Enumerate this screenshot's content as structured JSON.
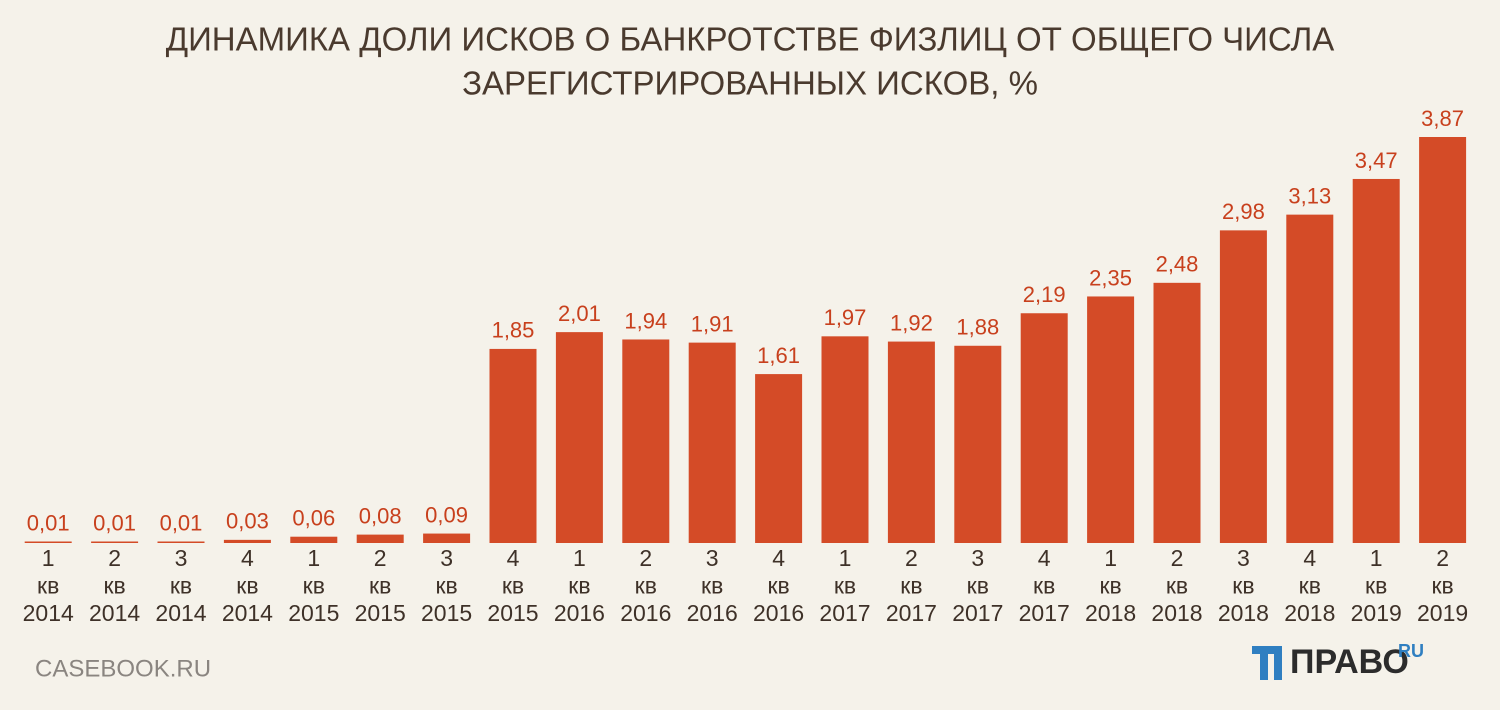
{
  "chart_data": {
    "type": "bar",
    "title": [
      "ДИНАМИКА ДОЛИ ИСКОВ О БАНКРОТСТВЕ ФИЗЛИЦ ОТ ОБЩЕГО ЧИСЛА",
      "ЗАРЕГИСТРИРОВАННЫХ ИСКОВ, %"
    ],
    "categories": [
      "1 кв 2014",
      "2 кв 2014",
      "3 кв 2014",
      "4 кв 2014",
      "1 кв 2015",
      "2 кв 2015",
      "3 кв 2015",
      "4 кв 2015",
      "1 кв 2016",
      "2 кв 2016",
      "3 кв 2016",
      "4 кв 2016",
      "1 кв 2017",
      "2 кв 2017",
      "3 кв 2017",
      "4 кв 2017",
      "1 кв 2018",
      "2 кв 2018",
      "3 кв 2018",
      "4 кв 2018",
      "1 кв 2019",
      "2 кв 2019"
    ],
    "values": [
      0.01,
      0.01,
      0.01,
      0.03,
      0.06,
      0.08,
      0.09,
      1.85,
      2.01,
      1.94,
      1.91,
      1.61,
      1.97,
      1.92,
      1.88,
      2.19,
      2.35,
      2.48,
      2.98,
      3.13,
      3.47,
      3.87
    ],
    "value_labels": [
      "0,01",
      "0,01",
      "0,01",
      "0,03",
      "0,06",
      "0,08",
      "0,09",
      "1,85",
      "2,01",
      "1,94",
      "1,91",
      "1,61",
      "1,97",
      "1,92",
      "1,88",
      "2,19",
      "2,35",
      "2,48",
      "2,98",
      "3,13",
      "3,47",
      "3,87"
    ],
    "color": "#d44b27"
  },
  "footer": {
    "source": "CASEBOOK.RU",
    "logo": "ПРАВО",
    "logo_suffix": "RU"
  }
}
